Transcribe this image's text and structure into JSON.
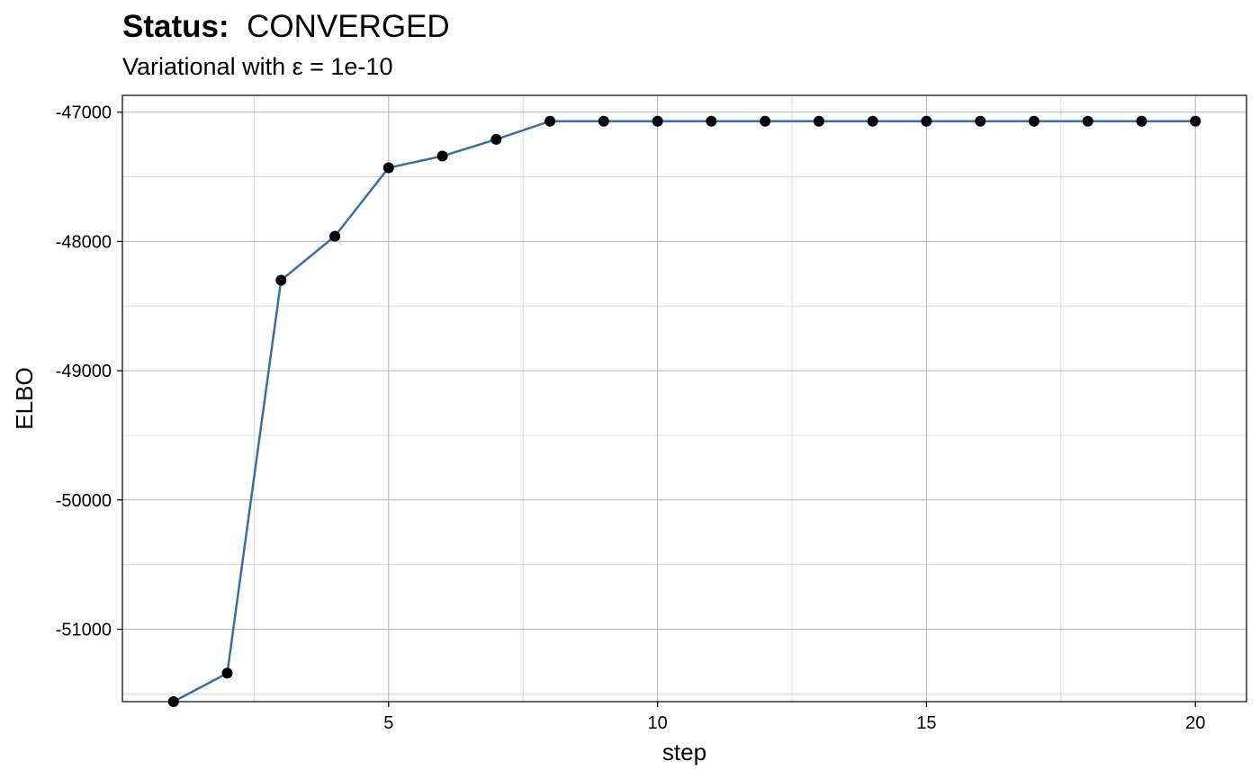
{
  "header": {
    "status_label": "Status:",
    "status_value": "CONVERGED",
    "subtitle": "Variational with ε = 1e-10"
  },
  "chart_data": {
    "type": "line",
    "title": "Status:  CONVERGED",
    "subtitle": "Variational with ε = 1e-10",
    "xlabel": "step",
    "ylabel": "ELBO",
    "x": [
      1,
      2,
      3,
      4,
      5,
      6,
      7,
      8,
      9,
      10,
      11,
      12,
      13,
      14,
      15,
      16,
      17,
      18,
      19,
      20
    ],
    "series": [
      {
        "values": [
          -51560,
          -51340,
          -48300,
          -47960,
          -47430,
          -47340,
          -47210,
          -47070,
          -47070,
          -47070,
          -47070,
          -47070,
          -47070,
          -47070,
          -47070,
          -47070,
          -47070,
          -47070,
          -47070,
          -47070
        ]
      }
    ],
    "xlim": [
      0.05,
      20.95
    ],
    "ylim": [
      -51560,
      -46870
    ],
    "x_ticks": [
      5,
      10,
      15,
      20
    ],
    "y_ticks": [
      -47000,
      -48000,
      -49000,
      -50000,
      -51000
    ],
    "grid": true,
    "colors": {
      "line": "#3a6ea5",
      "point": "#000000",
      "grid_major": "#b3b3b3",
      "grid_minor": "#dcdcdc"
    }
  }
}
